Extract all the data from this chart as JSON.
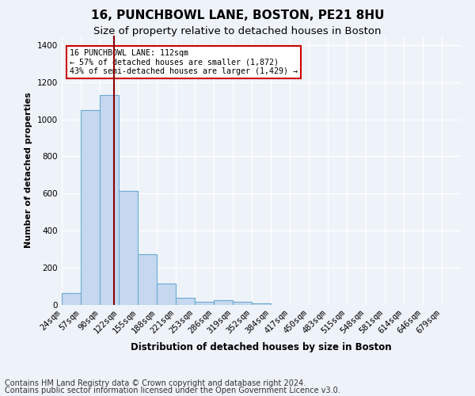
{
  "title1": "16, PUNCHBOWL LANE, BOSTON, PE21 8HU",
  "title2": "Size of property relative to detached houses in Boston",
  "xlabel": "Distribution of detached houses by size in Boston",
  "ylabel": "Number of detached properties",
  "footer1": "Contains HM Land Registry data © Crown copyright and database right 2024.",
  "footer2": "Contains public sector information licensed under the Open Government Licence v3.0.",
  "annotation_line1": "16 PUNCHBOWL LANE: 112sqm",
  "annotation_line2": "← 57% of detached houses are smaller (1,872)",
  "annotation_line3": "43% of semi-detached houses are larger (1,429) →",
  "bar_labels": [
    "24sqm",
    "57sqm",
    "90sqm",
    "122sqm",
    "155sqm",
    "188sqm",
    "221sqm",
    "253sqm",
    "286sqm",
    "319sqm",
    "352sqm",
    "384sqm",
    "417sqm",
    "450sqm",
    "483sqm",
    "515sqm",
    "548sqm",
    "581sqm",
    "614sqm",
    "646sqm",
    "679sqm"
  ],
  "bar_values": [
    65,
    1050,
    1130,
    615,
    275,
    115,
    38,
    18,
    25,
    18,
    8,
    0,
    0,
    0,
    0,
    0,
    0,
    0,
    0,
    0,
    0
  ],
  "bar_color": "#c5d8f0",
  "bar_edgecolor": "#6aabd2",
  "vline_color": "#8b0000",
  "vline_pos": 2.73,
  "ylim": [
    0,
    1450
  ],
  "yticks": [
    0,
    200,
    400,
    600,
    800,
    1000,
    1200,
    1400
  ],
  "bg_color": "#eef2f9",
  "grid_color": "#ffffff",
  "annotation_box_color": "#ffffff",
  "annotation_border_color": "#cc0000",
  "title1_fontsize": 11,
  "title2_fontsize": 9.5,
  "xlabel_fontsize": 8.5,
  "ylabel_fontsize": 8,
  "tick_fontsize": 7.5,
  "footer_fontsize": 7
}
